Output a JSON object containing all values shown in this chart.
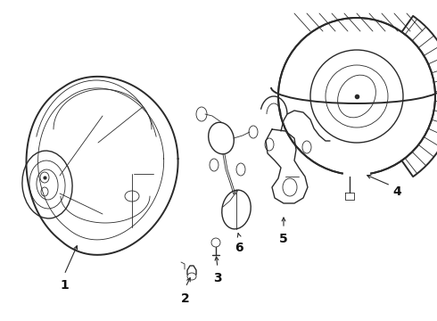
{
  "background_color": "#ffffff",
  "line_color": "#2a2a2a",
  "label_color": "#111111",
  "fig_width": 4.9,
  "fig_height": 3.6,
  "dpi": 100,
  "label_fontsize": 10,
  "lw_main": 1.0,
  "lw_thin": 0.6,
  "lw_thick": 1.4
}
